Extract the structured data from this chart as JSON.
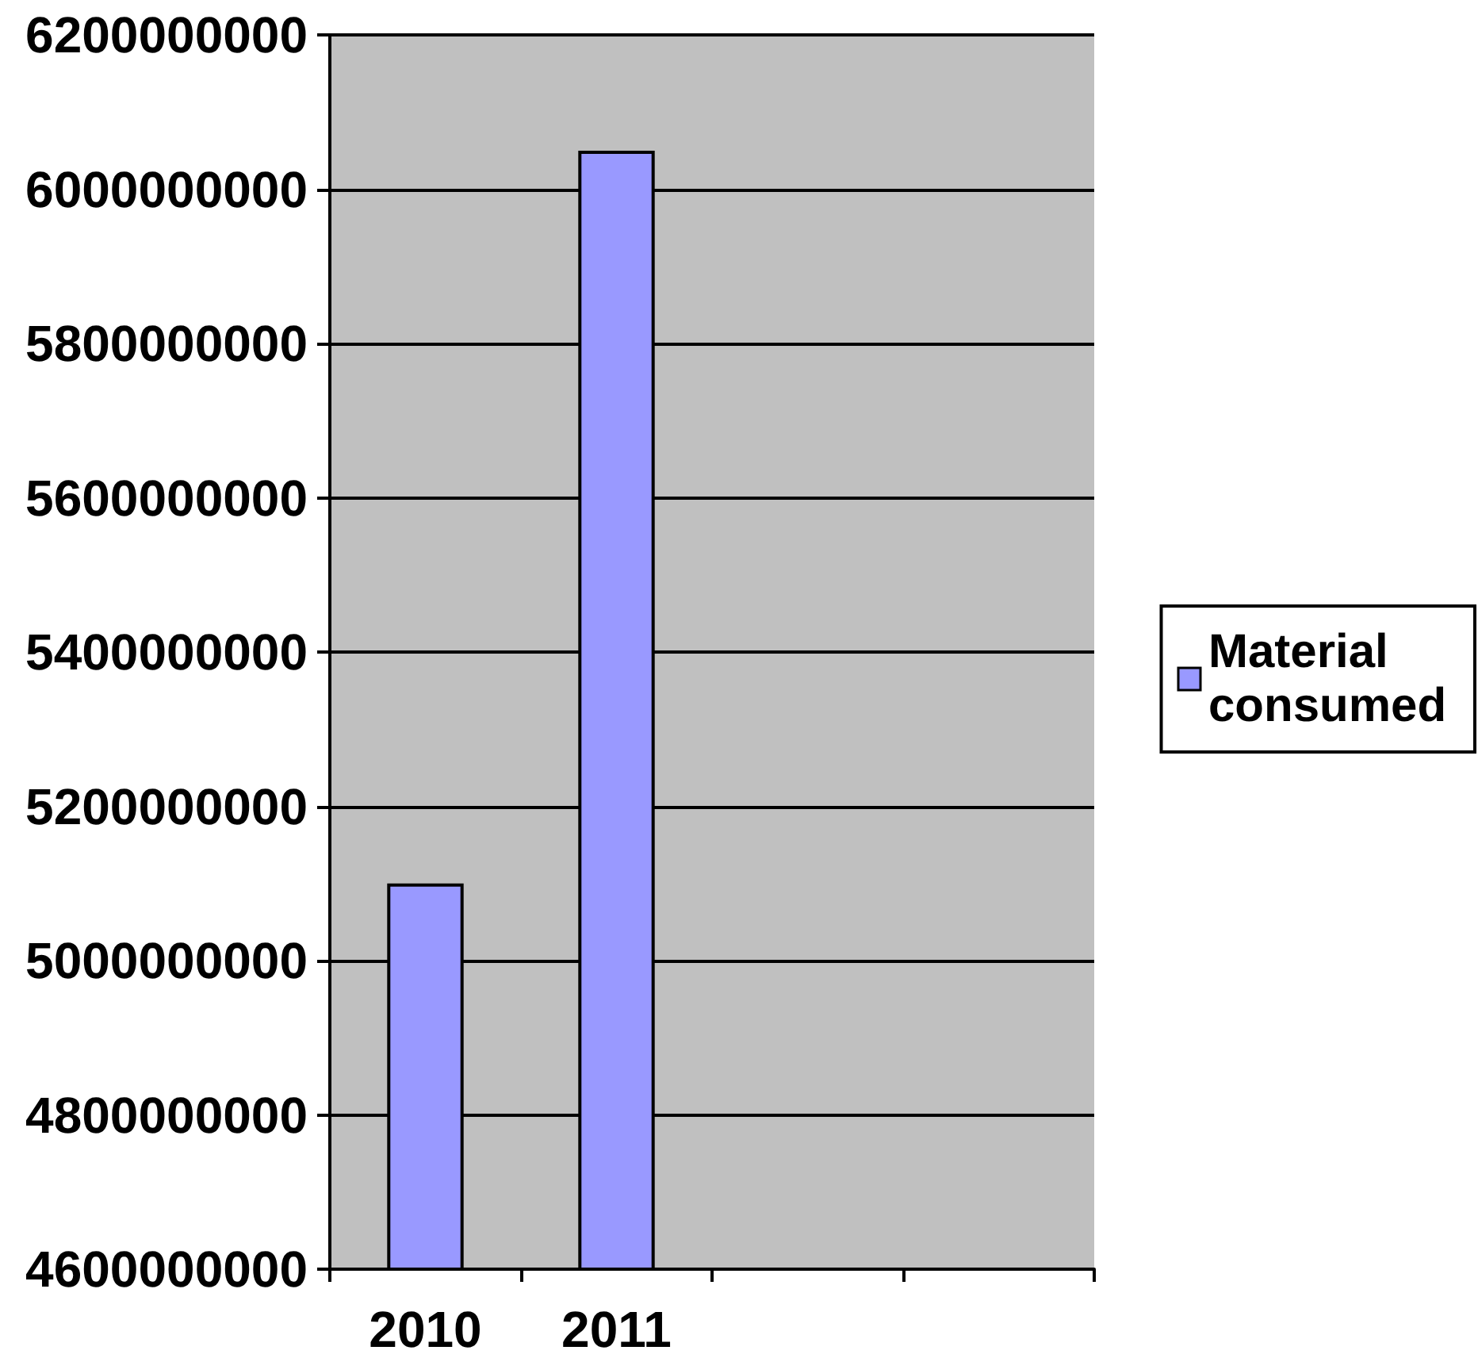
{
  "chart_data": {
    "type": "bar",
    "categories": [
      "2010",
      "2011",
      null,
      null
    ],
    "series": [
      {
        "name": "Material consumed",
        "color": "#9999ff",
        "values": [
          5100000000,
          6050000000,
          null,
          null
        ]
      }
    ],
    "ylim": [
      4600000000,
      6200000000
    ],
    "yticks": [
      4600000000,
      4800000000,
      5000000000,
      5200000000,
      5400000000,
      5600000000,
      5800000000,
      6000000000,
      6200000000
    ],
    "grid": "y",
    "legend": "right"
  }
}
